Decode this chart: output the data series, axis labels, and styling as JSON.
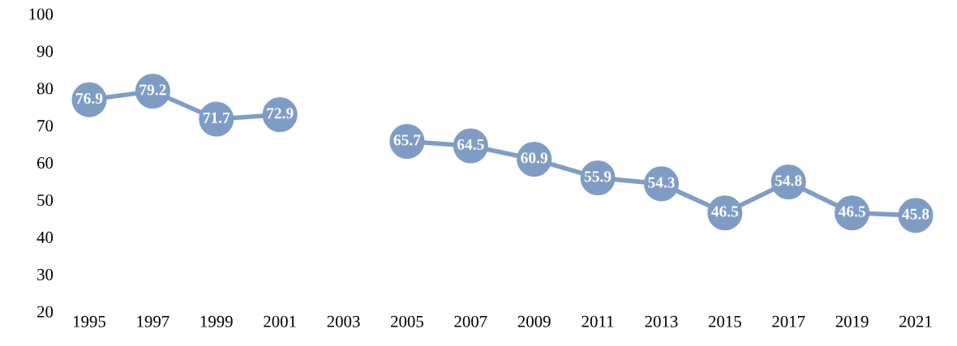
{
  "chart_data": {
    "type": "line",
    "categories": [
      "1995",
      "1997",
      "1999",
      "2001",
      "2003",
      "2005",
      "2007",
      "2009",
      "2011",
      "2013",
      "2015",
      "2017",
      "2019",
      "2021"
    ],
    "series": [
      {
        "color": "#7f9dc4",
        "values": [
          76.9,
          79.2,
          71.7,
          72.9,
          null,
          65.7,
          64.5,
          60.9,
          55.9,
          54.3,
          46.5,
          54.8,
          46.5,
          45.8
        ]
      }
    ],
    "ylim": [
      20,
      100
    ],
    "yticks": [
      20,
      30,
      40,
      50,
      60,
      70,
      80,
      90,
      100
    ],
    "data_labels": true,
    "marker": "circle",
    "line_style": "solid",
    "grid": false,
    "legend": false
  }
}
